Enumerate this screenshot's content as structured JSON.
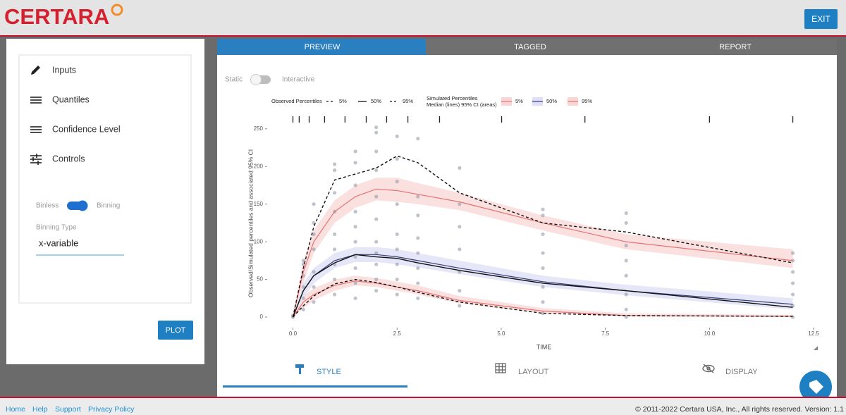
{
  "header": {
    "logo": "CERTARA",
    "exit_button": "EXIT"
  },
  "sidebar": {
    "menu": [
      "Inputs",
      "Quantiles",
      "Confidence Level",
      "Controls"
    ],
    "binning_toggle": {
      "left": "Binless",
      "right": "Binning",
      "on": true
    },
    "binning_type_label": "Binning Type",
    "binning_type_value": "x-variable",
    "plot_button": "PLOT"
  },
  "tabs": [
    "PREVIEW",
    "TAGGED",
    "REPORT"
  ],
  "mode_toggle": {
    "left": "Static",
    "right": "Interactive",
    "on": false
  },
  "chart_data": {
    "type": "line",
    "x_label": "TIME",
    "y_label": "Observed/Simulated percentiles and associated 95% CI",
    "xlim": [
      -0.55,
      12.6
    ],
    "ylim": [
      -14,
      262
    ],
    "xticks": [
      {
        "value": 0,
        "label": "0.0"
      },
      {
        "value": 2.5,
        "label": "2.5"
      },
      {
        "value": 5,
        "label": "5.0"
      },
      {
        "value": 7.5,
        "label": "7.5"
      },
      {
        "value": 10,
        "label": "10.0"
      },
      {
        "value": 12.5,
        "label": "12.5"
      }
    ],
    "yticks": [
      0,
      50,
      100,
      150,
      200,
      250
    ],
    "legend": {
      "observed_title": "Observed Percentiles",
      "simulated_title": [
        "Simulated Percentiles",
        "Median (lines) 95% CI (areas)"
      ]
    },
    "bin_breaks": [
      0,
      0.15,
      0.39,
      0.76,
      1.25,
      1.76,
      2.25,
      2.76,
      3.52,
      5.01,
      7.01,
      10,
      12
    ],
    "x": [
      0,
      0.25,
      0.5,
      1,
      1.5,
      2,
      2.5,
      3,
      4,
      6,
      8,
      12
    ],
    "simulated": [
      {
        "name": "5%",
        "color": "#e57373",
        "band_color": "#f9d6d6",
        "values": [
          0,
          20,
          30,
          42,
          48,
          45,
          40,
          35,
          22,
          8,
          2,
          1
        ],
        "lower": [
          0,
          12,
          22,
          35,
          42,
          40,
          35,
          30,
          18,
          5,
          1,
          0
        ],
        "upper": [
          0,
          28,
          38,
          50,
          55,
          52,
          47,
          42,
          28,
          12,
          5,
          3
        ]
      },
      {
        "name": "50%",
        "color": "#3a3f7a",
        "band_color": "#dcdff5",
        "values": [
          0,
          35,
          55,
          75,
          83,
          83,
          80,
          75,
          65,
          47,
          35,
          17
        ],
        "lower": [
          0,
          25,
          45,
          65,
          73,
          73,
          70,
          66,
          57,
          40,
          29,
          10
        ],
        "upper": [
          0,
          45,
          65,
          85,
          93,
          93,
          90,
          85,
          75,
          55,
          43,
          25
        ]
      },
      {
        "name": "95%",
        "color": "#e57373",
        "band_color": "#f9d6d6",
        "values": [
          0,
          60,
          100,
          140,
          160,
          170,
          168,
          163,
          153,
          125,
          100,
          75
        ],
        "lower": [
          0,
          45,
          85,
          125,
          145,
          155,
          153,
          150,
          142,
          115,
          90,
          65
        ],
        "upper": [
          0,
          75,
          115,
          155,
          175,
          185,
          185,
          178,
          165,
          135,
          110,
          90
        ]
      }
    ],
    "observed": [
      {
        "name": "5%",
        "color": "#111111",
        "dashed": true,
        "values": [
          0,
          15,
          28,
          44,
          50,
          46,
          40,
          33,
          20,
          5,
          2,
          1
        ]
      },
      {
        "name": "50%",
        "color": "#111111",
        "dashed": false,
        "values": [
          0,
          35,
          55,
          72,
          83,
          80,
          78,
          72,
          62,
          45,
          35,
          13
        ]
      },
      {
        "name": "95%",
        "color": "#111111",
        "dashed": true,
        "values": [
          0,
          65,
          120,
          182,
          190,
          198,
          214,
          205,
          165,
          125,
          113,
          72
        ]
      }
    ],
    "observations": {
      "color": "#8b93a3",
      "x": [
        0,
        0,
        0.25,
        0.25,
        0.25,
        0.25,
        0.25,
        0.25,
        0.5,
        0.5,
        0.5,
        0.5,
        0.5,
        0.5,
        0.5,
        1,
        1,
        1,
        1,
        1,
        1,
        1,
        1,
        1,
        1.5,
        1.5,
        1.5,
        1.5,
        1.5,
        1.5,
        1.5,
        1.5,
        1.5,
        1.5,
        2,
        2,
        2,
        2,
        2,
        2,
        2,
        2,
        2,
        2,
        2,
        2.5,
        2.5,
        2.5,
        2.5,
        2.5,
        2.5,
        2.5,
        2.5,
        2.5,
        3,
        3,
        3,
        3,
        3,
        3,
        3,
        3,
        4,
        4,
        4,
        4,
        4,
        4,
        4,
        6,
        6,
        6,
        6,
        6,
        6,
        6,
        6,
        8,
        8,
        8,
        8,
        8,
        8,
        8,
        8,
        12,
        12,
        12,
        12,
        12,
        12,
        12
      ],
      "y": [
        0,
        2,
        10,
        25,
        40,
        55,
        70,
        75,
        20,
        40,
        60,
        90,
        110,
        125,
        150,
        30,
        50,
        70,
        90,
        110,
        140,
        165,
        195,
        203,
        25,
        45,
        65,
        80,
        100,
        120,
        140,
        175,
        205,
        220,
        35,
        50,
        70,
        85,
        100,
        130,
        160,
        195,
        220,
        245,
        252,
        30,
        50,
        70,
        90,
        110,
        150,
        180,
        210,
        240,
        25,
        45,
        65,
        85,
        105,
        135,
        160,
        237,
        15,
        35,
        60,
        90,
        120,
        150,
        198,
        5,
        20,
        40,
        65,
        85,
        110,
        135,
        143,
        0,
        10,
        30,
        55,
        75,
        95,
        125,
        138,
        0,
        15,
        30,
        45,
        60,
        75,
        85
      ]
    }
  },
  "bottom_tabs": [
    "STYLE",
    "LAYOUT",
    "DISPLAY"
  ],
  "footer": {
    "links": [
      "Home",
      "Help",
      "Support",
      "Privacy Policy"
    ],
    "copyright": "© 2011-2022 Certara USA, Inc., All rights reserved. Version: 1.1"
  }
}
